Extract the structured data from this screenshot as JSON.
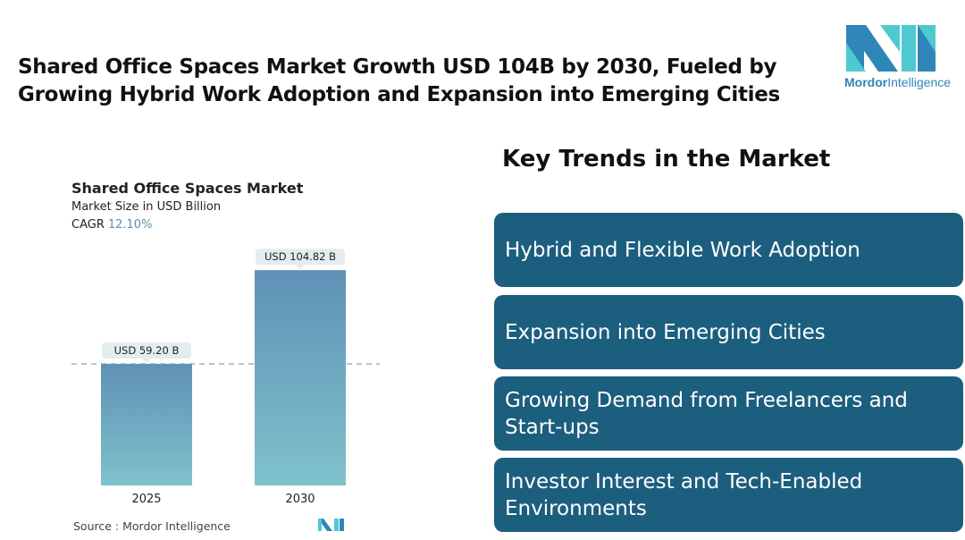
{
  "title": "Shared Office Spaces Market Growth USD 104B by 2030, Fueled by Growing Hybrid Work Adoption and Expansion into Emerging Cities",
  "logo": {
    "brand": "Mordor",
    "brand2": "Intelligence",
    "colors": {
      "dark": "#2f86b8",
      "light": "#4fc9d0"
    }
  },
  "chart_data": {
    "type": "bar",
    "title": "Shared Office Spaces Market",
    "subtitle": "Market Size in USD Billion",
    "cagr_label": "CAGR",
    "cagr_value": "12.10%",
    "categories": [
      "2025",
      "2030"
    ],
    "values": [
      59.2,
      104.82
    ],
    "data_labels": [
      "USD 59.20 B",
      "USD 104.82 B"
    ],
    "reference_line": 59.2,
    "bar_gradient": {
      "top": "#5f91b6",
      "bottom": "#7fc2cb"
    }
  },
  "source": "Source :  Mordor Intelligence",
  "trends": {
    "title": "Key Trends in the Market",
    "items": [
      "Hybrid and Flexible Work Adoption",
      "Expansion into Emerging Cities",
      "Growing Demand from Freelancers and Start-ups",
      "Investor Interest and Tech-Enabled Environments"
    ],
    "card_color": "#1c5e7e"
  }
}
